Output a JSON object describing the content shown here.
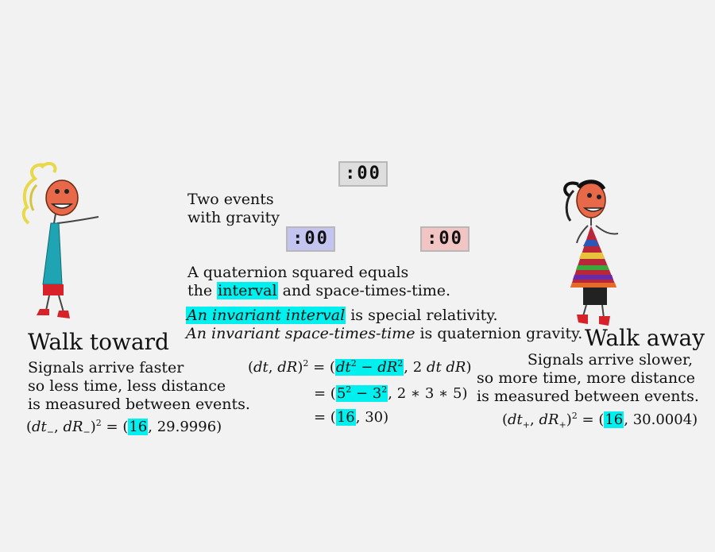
{
  "clocks": {
    "center": ":00",
    "left": ":00",
    "right": ":00"
  },
  "intro": {
    "line1": "Two events",
    "line2": "with gravity"
  },
  "quaternion": {
    "line1": "A quaternion squared equals",
    "line2_pre": "the ",
    "line2_hl": "interval",
    "line2_post": " and space-times-time."
  },
  "invariant": {
    "line1_hl": "An invariant interval",
    "line1_post": " is special relativity.",
    "line2_it": "An invariant space-times-time",
    "line2_post": " is quaternion gravity."
  },
  "left_panel": {
    "title": "Walk toward",
    "line1": "Signals arrive faster",
    "line2": "so less time, less distance",
    "line3": "is measured between events.",
    "eq_first": "16",
    "eq_second": "29.9996"
  },
  "right_panel": {
    "title": "Walk away",
    "line1": "Signals arrive slower,",
    "line2": "so more time, more distance",
    "line3": "is measured between events.",
    "eq_first": "16",
    "eq_second": "30.0004"
  },
  "center_eq": {
    "row2_a": "5",
    "row2_b": "3",
    "row2_c": "2 ∗ 3 ∗ 5",
    "row3_a": "16",
    "row3_b": "30"
  },
  "colors": {
    "highlight": "#00f0f0",
    "clock_left": "#c4c4f0",
    "clock_right": "#f2c4c4",
    "clock_center": "#dedede"
  }
}
